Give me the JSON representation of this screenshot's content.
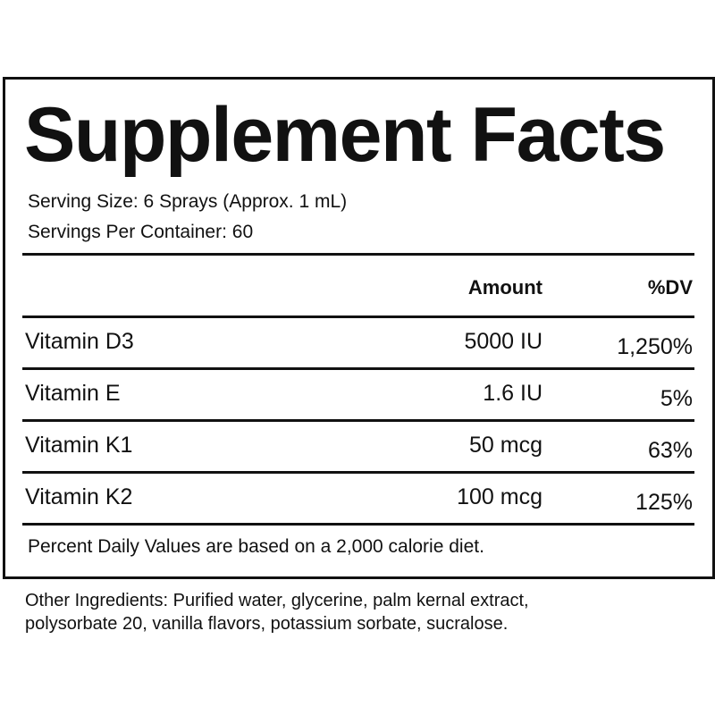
{
  "label": {
    "title": "Supplement Facts",
    "serving_size": "Serving Size: 6 Sprays (Approx. 1 mL)",
    "servings_per_container": "Servings Per Container: 60",
    "columns": {
      "amount": "Amount",
      "daily_value": "%DV"
    },
    "rows": [
      {
        "name": "Vitamin D3",
        "amount": "5000 IU",
        "dv": "1,250%"
      },
      {
        "name": "Vitamin E",
        "amount": "1.6 IU",
        "dv": "5%"
      },
      {
        "name": "Vitamin K1",
        "amount": "50 mcg",
        "dv": "63%"
      },
      {
        "name": "Vitamin K2",
        "amount": "100 mcg",
        "dv": "125%"
      }
    ],
    "footnote": "Percent Daily Values are based on a 2,000 calorie diet."
  },
  "other_ingredients": {
    "line1": "Other Ingredients: Purified water, glycerine, palm kernal extract,",
    "line2": "polysorbate 20, vanilla flavors, potassium sorbate, sucralose."
  }
}
